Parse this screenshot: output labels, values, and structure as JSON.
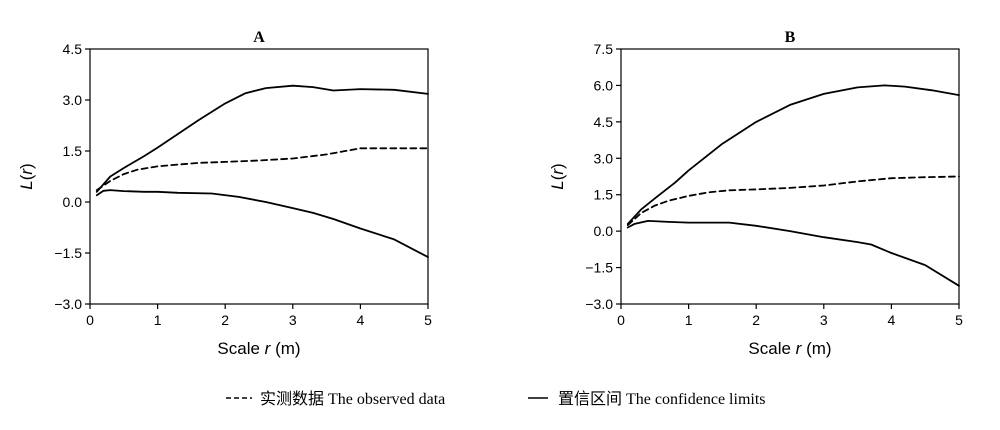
{
  "chart_data": [
    {
      "type": "line",
      "title": "A",
      "xlabel": "Scale r (m)",
      "ylabel": "L(r)",
      "xlim": [
        0,
        5
      ],
      "ylim": [
        -3.0,
        4.5
      ],
      "xticks": [
        "0",
        "1",
        "2",
        "3",
        "4",
        "5"
      ],
      "yticks": [
        "−3.0",
        "−1.5",
        "0.0",
        "1.5",
        "3.0",
        "4.5"
      ],
      "series": [
        {
          "style": "dashed",
          "x": [
            0.1,
            0.3,
            0.5,
            0.7,
            1.0,
            1.3,
            1.6,
            2.0,
            2.5,
            3.0,
            3.5,
            4.0,
            4.5,
            5.0
          ],
          "y": [
            0.35,
            0.62,
            0.82,
            0.95,
            1.05,
            1.1,
            1.15,
            1.18,
            1.22,
            1.28,
            1.4,
            1.58,
            1.58,
            1.58
          ]
        },
        {
          "style": "solid",
          "x": [
            0.1,
            0.3,
            0.5,
            0.8,
            1.0,
            1.3,
            1.6,
            2.0,
            2.3,
            2.6,
            3.0,
            3.3,
            3.6,
            4.0,
            4.5,
            5.0
          ],
          "y": [
            0.3,
            0.75,
            1.0,
            1.35,
            1.6,
            2.0,
            2.4,
            2.9,
            3.2,
            3.35,
            3.42,
            3.38,
            3.28,
            3.32,
            3.3,
            3.18
          ]
        },
        {
          "style": "solid",
          "x": [
            0.1,
            0.2,
            0.3,
            0.5,
            0.8,
            1.0,
            1.3,
            1.8,
            2.2,
            2.6,
            3.0,
            3.3,
            3.6,
            4.0,
            4.5,
            5.0
          ],
          "y": [
            0.2,
            0.33,
            0.35,
            0.32,
            0.3,
            0.3,
            0.27,
            0.25,
            0.15,
            0.0,
            -0.18,
            -0.32,
            -0.5,
            -0.78,
            -1.1,
            -1.62
          ]
        }
      ]
    },
    {
      "type": "line",
      "title": "B",
      "xlabel": "Scale r (m)",
      "ylabel": "L(r)",
      "xlim": [
        0,
        5
      ],
      "ylim": [
        -3.0,
        7.5
      ],
      "xticks": [
        "0",
        "1",
        "2",
        "3",
        "4",
        "5"
      ],
      "yticks": [
        "−3.0",
        "−1.5",
        "0.0",
        "1.5",
        "3.0",
        "4.5",
        "6.0",
        "7.5"
      ],
      "series": [
        {
          "style": "dashed",
          "x": [
            0.1,
            0.3,
            0.5,
            0.7,
            1.0,
            1.3,
            1.6,
            2.0,
            2.5,
            3.0,
            3.5,
            4.0,
            4.5,
            5.0
          ],
          "y": [
            0.25,
            0.75,
            1.05,
            1.25,
            1.45,
            1.6,
            1.68,
            1.72,
            1.78,
            1.88,
            2.05,
            2.18,
            2.22,
            2.25
          ]
        },
        {
          "style": "solid",
          "x": [
            0.1,
            0.3,
            0.5,
            0.8,
            1.0,
            1.5,
            2.0,
            2.5,
            3.0,
            3.5,
            3.9,
            4.2,
            4.6,
            5.0
          ],
          "y": [
            0.3,
            0.9,
            1.35,
            2.0,
            2.5,
            3.6,
            4.5,
            5.2,
            5.65,
            5.92,
            6.0,
            5.95,
            5.8,
            5.6
          ]
        },
        {
          "style": "solid",
          "x": [
            0.1,
            0.2,
            0.4,
            0.7,
            1.0,
            1.3,
            1.6,
            2.0,
            2.5,
            3.0,
            3.5,
            3.7,
            4.0,
            4.5,
            5.0
          ],
          "y": [
            0.15,
            0.3,
            0.42,
            0.38,
            0.35,
            0.35,
            0.35,
            0.22,
            0.0,
            -0.25,
            -0.45,
            -0.55,
            -0.9,
            -1.4,
            -2.25
          ]
        }
      ]
    }
  ],
  "legend": {
    "observed_label": "实测数据  The observed data",
    "confidence_label": "置信区间  The confidence limits"
  }
}
